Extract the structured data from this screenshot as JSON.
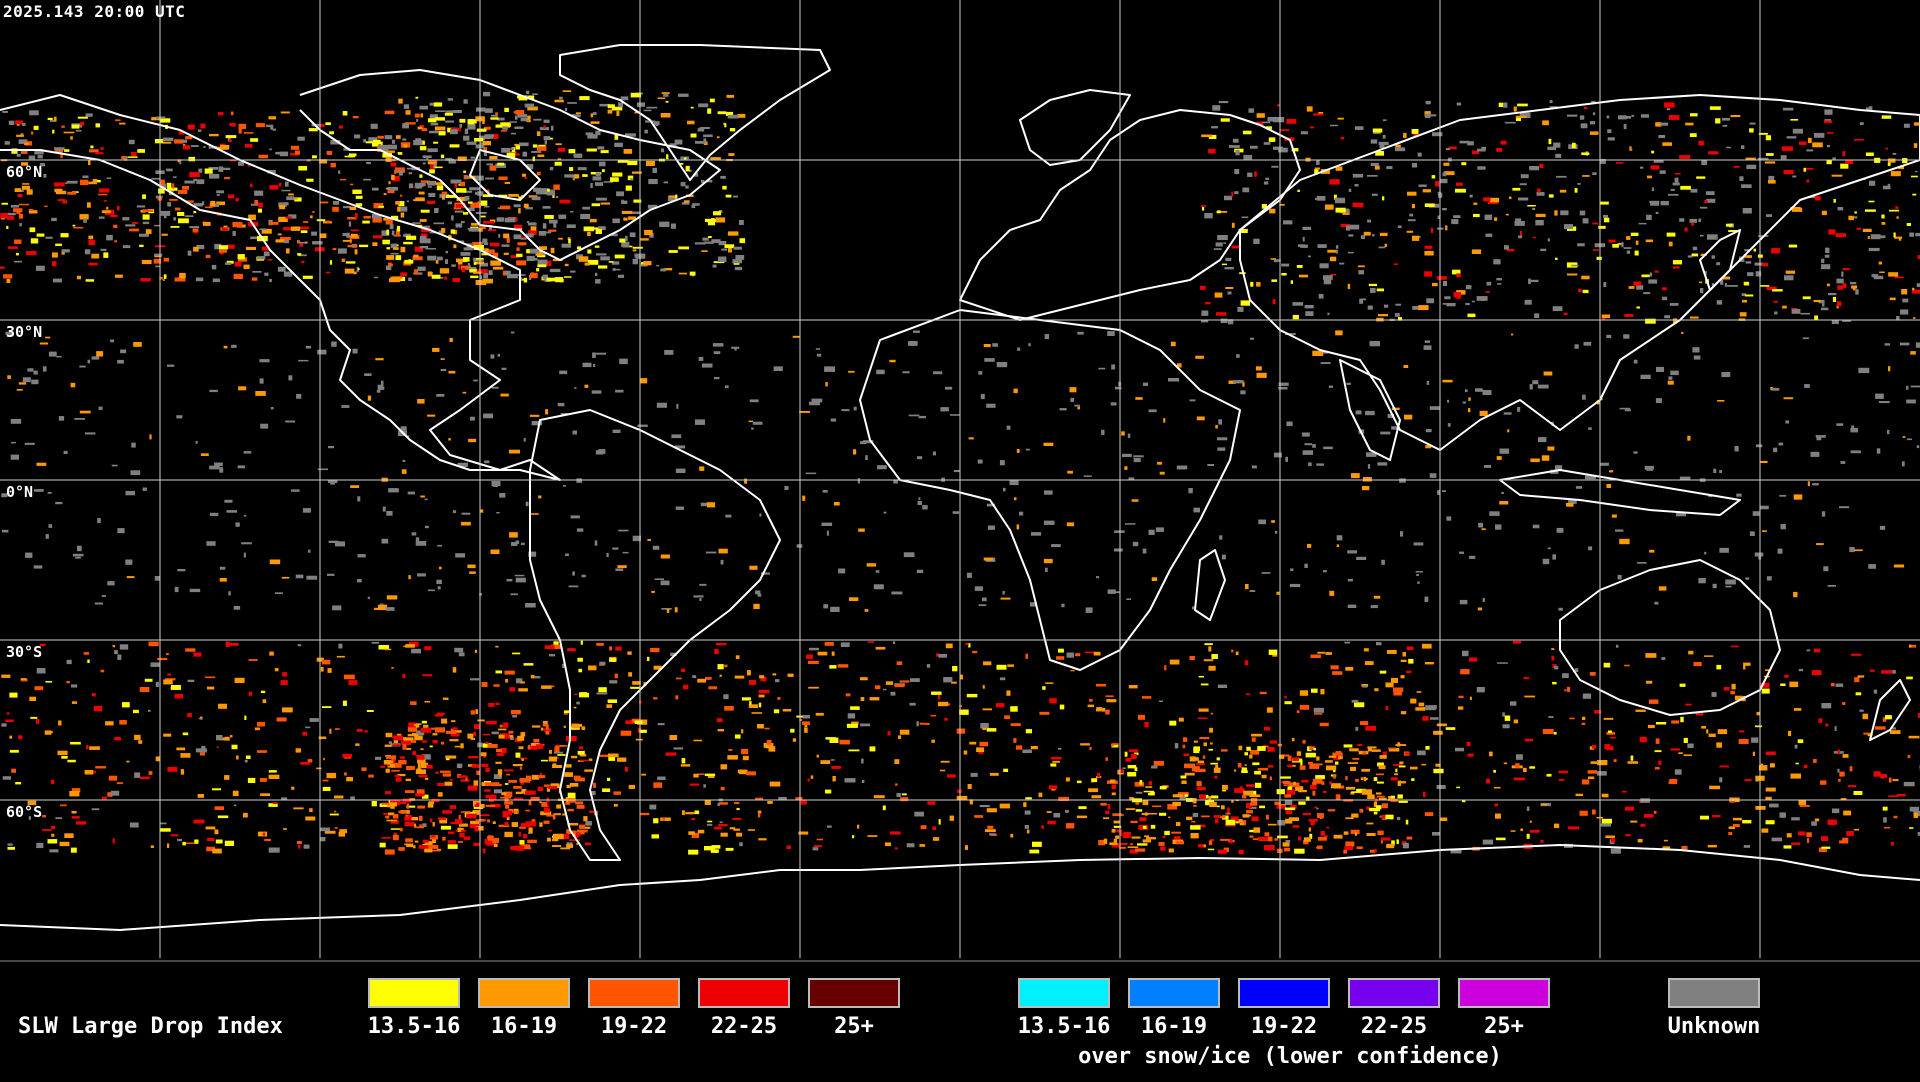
{
  "header": {
    "timestamp": "2025.143 20:00 UTC"
  },
  "map": {
    "lat_labels": [
      "60°N",
      "30°N",
      "0°N",
      "30°S",
      "60°S"
    ]
  },
  "legend": {
    "title": "SLW Large Drop Index",
    "primary": [
      {
        "label": "13.5-16",
        "color": "#ffff00"
      },
      {
        "label": "16-19",
        "color": "#ff9900"
      },
      {
        "label": "19-22",
        "color": "#ff5500"
      },
      {
        "label": "22-25",
        "color": "#ee0000"
      },
      {
        "label": "25+",
        "color": "#660000"
      }
    ],
    "snow_ice": [
      {
        "label": "13.5-16",
        "color": "#00f0ff"
      },
      {
        "label": "16-19",
        "color": "#0080ff"
      },
      {
        "label": "19-22",
        "color": "#0000ff"
      },
      {
        "label": "22-25",
        "color": "#7700ee"
      },
      {
        "label": "25+",
        "color": "#cc00dd"
      }
    ],
    "snow_ice_note": "over snow/ice (lower confidence)",
    "unknown": {
      "label": "Unknown",
      "color": "#808080"
    }
  }
}
